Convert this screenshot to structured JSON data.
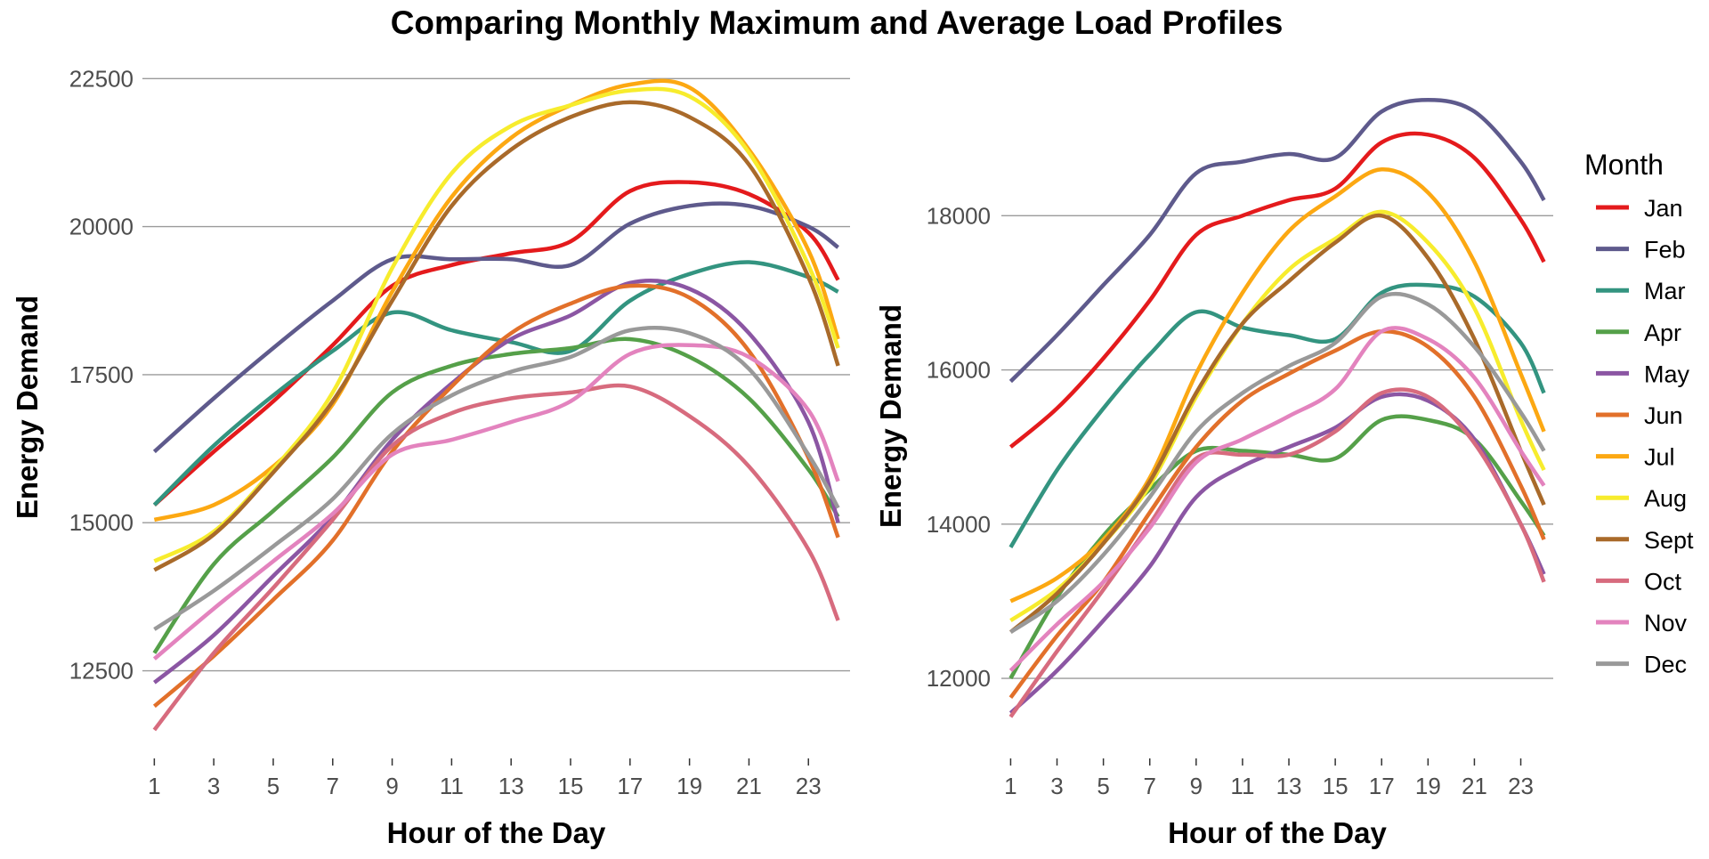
{
  "title": "Comparing Monthly Maximum and Average Load Profiles",
  "legend": {
    "title": "Month",
    "items": [
      {
        "label": "Jan",
        "color": "#e41a1c"
      },
      {
        "label": "Feb",
        "color": "#5e5a8c"
      },
      {
        "label": "Mar",
        "color": "#339480"
      },
      {
        "label": "Apr",
        "color": "#55a049"
      },
      {
        "label": "May",
        "color": "#8b56a3"
      },
      {
        "label": "Jun",
        "color": "#e2702a"
      },
      {
        "label": "Jul",
        "color": "#fca812"
      },
      {
        "label": "Aug",
        "color": "#f7ec2d"
      },
      {
        "label": "Sept",
        "color": "#a96a2a"
      },
      {
        "label": "Oct",
        "color": "#d76b7e"
      },
      {
        "label": "Nov",
        "color": "#e383be"
      },
      {
        "label": "Dec",
        "color": "#999999"
      }
    ]
  },
  "chart_data": [
    {
      "type": "line",
      "xlabel": "Hour of the Day",
      "ylabel": "Energy Demand",
      "xlim": [
        0.6,
        24.4
      ],
      "ylim": [
        11200,
        22700
      ],
      "xticks": [
        1,
        3,
        5,
        7,
        9,
        11,
        13,
        15,
        17,
        19,
        21,
        23
      ],
      "yticks": [
        12500,
        15000,
        17500,
        20000,
        22500
      ],
      "x": [
        1,
        3,
        5,
        7,
        9,
        11,
        13,
        15,
        17,
        19,
        21,
        23,
        24
      ],
      "series": [
        {
          "name": "Jan",
          "values": [
            15300,
            16200,
            17050,
            18000,
            19000,
            19350,
            19550,
            19750,
            20600,
            20750,
            20550,
            19900,
            19100
          ]
        },
        {
          "name": "Feb",
          "values": [
            16200,
            17100,
            17950,
            18750,
            19450,
            19450,
            19450,
            19350,
            20050,
            20350,
            20350,
            20000,
            19650
          ]
        },
        {
          "name": "Mar",
          "values": [
            15300,
            16300,
            17150,
            17900,
            18550,
            18250,
            18050,
            17900,
            18750,
            19200,
            19400,
            19150,
            18900
          ]
        },
        {
          "name": "Apr",
          "values": [
            12800,
            14300,
            15200,
            16100,
            17200,
            17650,
            17850,
            17950,
            18100,
            17800,
            17100,
            15900,
            15100
          ]
        },
        {
          "name": "May",
          "values": [
            12300,
            13100,
            14100,
            15100,
            16400,
            17350,
            18100,
            18500,
            19050,
            18950,
            18200,
            16700,
            15000
          ]
        },
        {
          "name": "Jun",
          "values": [
            11900,
            12750,
            13700,
            14700,
            16200,
            17300,
            18200,
            18700,
            19000,
            18800,
            17900,
            16100,
            14750
          ]
        },
        {
          "name": "Jul",
          "values": [
            15050,
            15300,
            15950,
            17000,
            18900,
            20500,
            21500,
            22050,
            22400,
            22350,
            21300,
            19600,
            18100
          ]
        },
        {
          "name": "Aug",
          "values": [
            14350,
            14850,
            15900,
            17200,
            19300,
            20900,
            21700,
            22050,
            22300,
            22200,
            21250,
            19350,
            17950
          ]
        },
        {
          "name": "Sept",
          "values": [
            14200,
            14800,
            15850,
            17050,
            18750,
            20350,
            21300,
            21850,
            22100,
            21850,
            21050,
            19150,
            17650
          ]
        },
        {
          "name": "Oct",
          "values": [
            11500,
            12800,
            13900,
            15050,
            16300,
            16850,
            17100,
            17200,
            17300,
            16800,
            15950,
            14550,
            13350
          ]
        },
        {
          "name": "Nov",
          "values": [
            12700,
            13550,
            14350,
            15150,
            16150,
            16400,
            16700,
            17050,
            17850,
            18000,
            17800,
            16900,
            15700
          ]
        },
        {
          "name": "Dec",
          "values": [
            13200,
            13850,
            14600,
            15400,
            16500,
            17150,
            17550,
            17800,
            18250,
            18200,
            17600,
            16150,
            15250
          ]
        }
      ]
    },
    {
      "type": "line",
      "xlabel": "Hour of the Day",
      "ylabel": "Energy Demand",
      "xlim": [
        0.6,
        24.4
      ],
      "ylim": [
        11100,
        19700
      ],
      "xticks": [
        1,
        3,
        5,
        7,
        9,
        11,
        13,
        15,
        17,
        19,
        21,
        23
      ],
      "yticks": [
        12000,
        14000,
        16000,
        18000
      ],
      "x": [
        1,
        3,
        5,
        7,
        9,
        11,
        13,
        15,
        17,
        19,
        21,
        23,
        24
      ],
      "series": [
        {
          "name": "Jan",
          "values": [
            15000,
            15500,
            16150,
            16900,
            17750,
            18000,
            18200,
            18350,
            18950,
            19050,
            18750,
            17950,
            17400
          ]
        },
        {
          "name": "Feb",
          "values": [
            15850,
            16450,
            17100,
            17750,
            18550,
            18700,
            18800,
            18750,
            19350,
            19500,
            19350,
            18700,
            18200
          ]
        },
        {
          "name": "Mar",
          "values": [
            13700,
            14700,
            15500,
            16200,
            16750,
            16550,
            16450,
            16400,
            17000,
            17100,
            16950,
            16350,
            15700
          ]
        },
        {
          "name": "Apr",
          "values": [
            12000,
            13050,
            13850,
            14450,
            14950,
            14950,
            14900,
            14850,
            15350,
            15350,
            15100,
            14300,
            13850
          ]
        },
        {
          "name": "May",
          "values": [
            11550,
            12100,
            12750,
            13450,
            14350,
            14750,
            15000,
            15250,
            15650,
            15600,
            15100,
            14000,
            13350
          ]
        },
        {
          "name": "Jun",
          "values": [
            11750,
            12550,
            13250,
            14150,
            15000,
            15600,
            15950,
            16250,
            16500,
            16300,
            15650,
            14500,
            13800
          ]
        },
        {
          "name": "Jul",
          "values": [
            13000,
            13300,
            13800,
            14600,
            15950,
            17000,
            17800,
            18250,
            18600,
            18300,
            17400,
            15950,
            15200
          ]
        },
        {
          "name": "Aug",
          "values": [
            12750,
            13150,
            13750,
            14500,
            15650,
            16600,
            17300,
            17700,
            18050,
            17650,
            16800,
            15350,
            14700
          ]
        },
        {
          "name": "Sept",
          "values": [
            12600,
            13100,
            13750,
            14550,
            15700,
            16600,
            17150,
            17650,
            18000,
            17450,
            16400,
            14950,
            14250
          ]
        },
        {
          "name": "Oct",
          "values": [
            11500,
            12350,
            13150,
            14000,
            14850,
            14900,
            14900,
            15200,
            15700,
            15650,
            15050,
            14000,
            13250
          ]
        },
        {
          "name": "Nov",
          "values": [
            12100,
            12700,
            13250,
            13950,
            14800,
            15100,
            15400,
            15750,
            16500,
            16400,
            15900,
            14950,
            14500
          ]
        },
        {
          "name": "Dec",
          "values": [
            12600,
            13000,
            13600,
            14350,
            15200,
            15700,
            16050,
            16350,
            16950,
            16850,
            16300,
            15450,
            14950
          ]
        }
      ]
    }
  ]
}
